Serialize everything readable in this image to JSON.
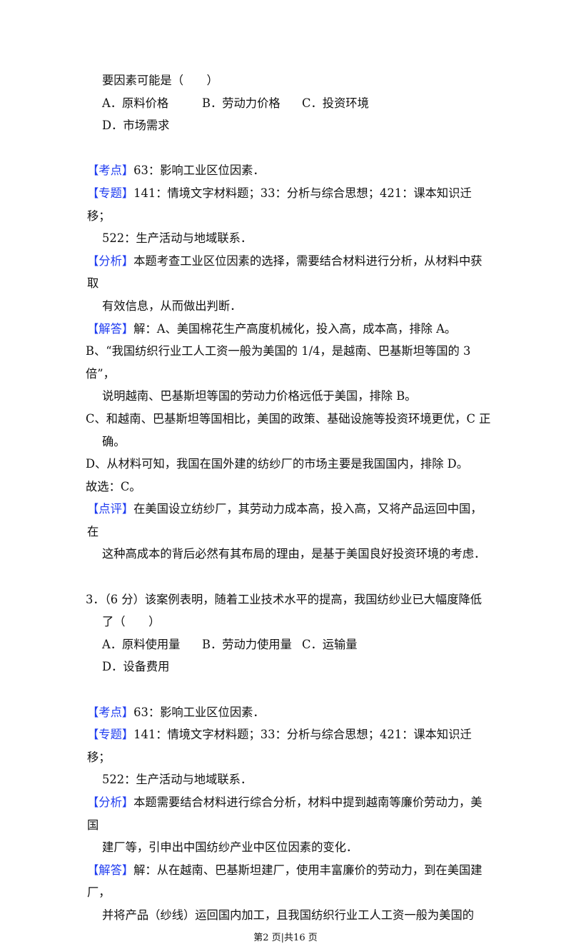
{
  "q2_tail": {
    "stem": "要因素可能是（　　）",
    "choices": [
      "A．原料价格",
      "B．劳动力价格",
      "C．投资环境",
      "D．市场需求"
    ],
    "kaodian": {
      "tag": "【考点】",
      "text": "63：影响工业区位因素．"
    },
    "zhuanti": {
      "tag": "【专题】",
      "line1": "141：情境文字材料题；33：分析与综合思想；421：课本知识迁移；",
      "line2": "522：生产活动与地域联系．"
    },
    "fenxi": {
      "tag": "【分析】",
      "line1": "本题考查工业区位因素的选择，需要结合材料进行分析，从材料中获取",
      "line2": "有效信息，从而做出判断．"
    },
    "jieda": {
      "tag": "【解答】",
      "line1": "解：A、美国棉花生产高度机械化，投入高，成本高，排除 A。",
      "lines": [
        "B、“我国纺织行业工人工资一般为美国的 1/4，是越南、巴基斯坦等国的 3 倍”，",
        "说明越南、巴基斯坦等国的劳动力价格远低于美国，排除 B。",
        "C、和越南、巴基斯坦等国相比，美国的政策、基础设施等投资环境更优，C 正",
        "确。",
        "D、从材料可知，我国在国外建的纺纱厂的市场主要是我国国内，排除 D。",
        "故选：C。"
      ]
    },
    "dianping": {
      "tag": "【点评】",
      "line1": "在美国设立纺纱厂，其劳动力成本高，投入高，又将产品运回中国，在",
      "line2": "这种高成本的背后必然有其布局的理由，是基于美国良好投资环境的考虑．"
    }
  },
  "q3": {
    "stem1": "3．（6 分）该案例表明，随着工业技术水平的提高，我国纺纱业已大幅度降低",
    "stem2": "了（　　）",
    "choices": [
      "A．原料使用量",
      "B．劳动力使用量",
      "C．运输量",
      "D．设备费用"
    ],
    "kaodian": {
      "tag": "【考点】",
      "text": "63：影响工业区位因素．"
    },
    "zhuanti": {
      "tag": "【专题】",
      "line1": "141：情境文字材料题；33：分析与综合思想；421：课本知识迁移；",
      "line2": "522：生产活动与地域联系．"
    },
    "fenxi": {
      "tag": "【分析】",
      "line1": "本题需要结合材料进行综合分析，材料中提到越南等廉价劳动力，美国",
      "line2": "建厂等，引申出中国纺纱产业中区位因素的变化．"
    },
    "jieda": {
      "tag": "【解答】",
      "line1": "解：从在越南、巴基斯坦建厂，使用丰富廉价的劳动力，到在美国建厂，",
      "line2": "并将产品（纱线）运回国内加工，且我国纺织行业工人工资一般为美国的"
    }
  },
  "footer": "第2 页|共16 页",
  "colors": {
    "tag": "#1f3cf0",
    "text": "#111111"
  }
}
